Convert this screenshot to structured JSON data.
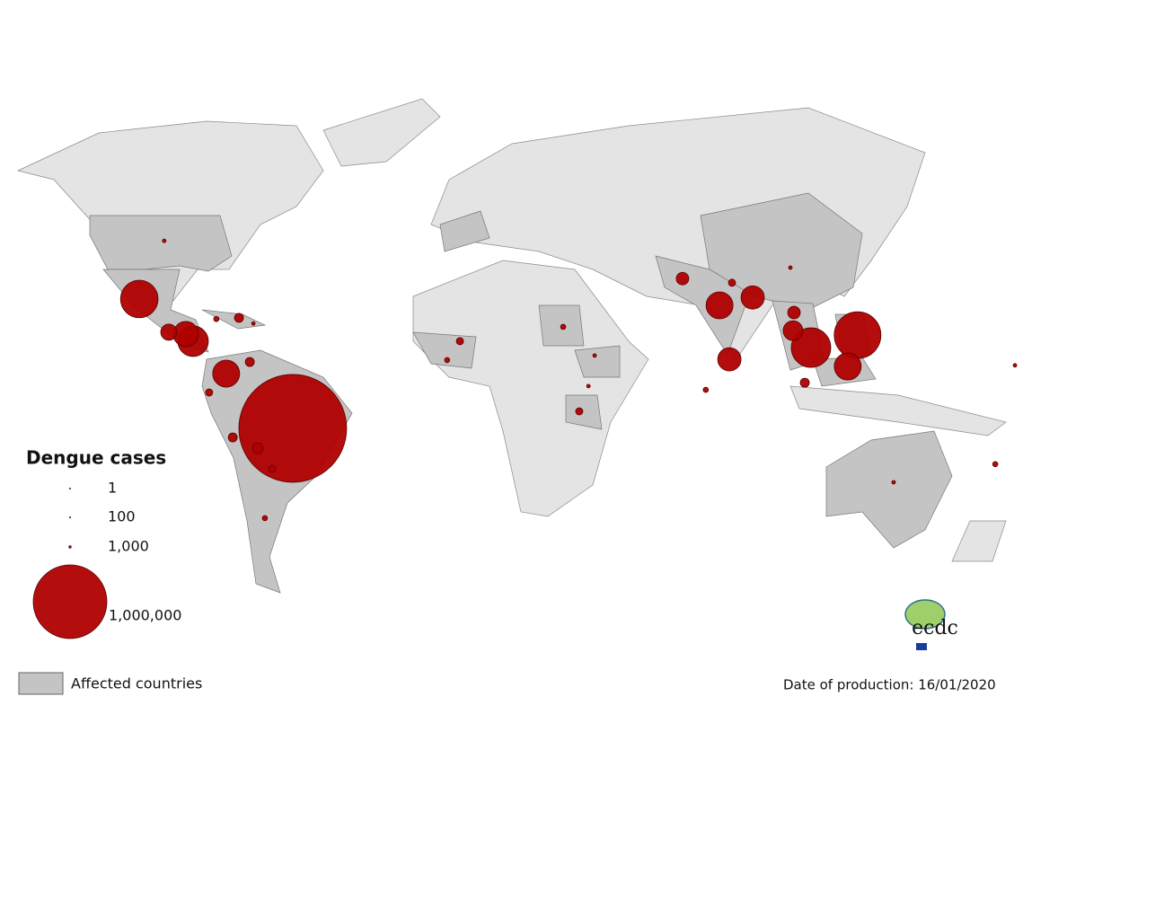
{
  "legend": {
    "title": "Dengue cases",
    "sizes": [
      {
        "value": 1,
        "label": "1"
      },
      {
        "value": 100,
        "label": "100"
      },
      {
        "value": 1000,
        "label": "1,000"
      },
      {
        "value": 1000000,
        "label": "1,000,000"
      }
    ],
    "affected_label": "Affected countries"
  },
  "date_text": "Date of production: 16/01/2020",
  "logo_text": "ecdc",
  "bubbles": [
    {
      "lon": -91.0,
      "lat": 39.0,
      "cases": 2400
    },
    {
      "lon": -98.6,
      "lat": 23.6,
      "cases": 260000
    },
    {
      "lon": -89.6,
      "lat": 14.8,
      "cases": 48000
    },
    {
      "lon": -84.4,
      "lat": 14.3,
      "cases": 117000
    },
    {
      "lon": -82.2,
      "lat": 12.4,
      "cases": 172000
    },
    {
      "lon": -75.1,
      "lat": 18.3,
      "cases": 5000
    },
    {
      "lon": -68.2,
      "lat": 18.6,
      "cases": 15000
    },
    {
      "lon": -63.8,
      "lat": 17.1,
      "cases": 2400
    },
    {
      "lon": -72.1,
      "lat": 3.8,
      "cases": 134000
    },
    {
      "lon": -64.9,
      "lat": 6.9,
      "cases": 15000
    },
    {
      "lon": -77.3,
      "lat": -1.2,
      "cases": 9500
    },
    {
      "lon": -70.1,
      "lat": -13.1,
      "cases": 15000
    },
    {
      "lon": -51.8,
      "lat": -10.7,
      "cases": 2140000
    },
    {
      "lon": -62.5,
      "lat": -16.0,
      "cases": 21000
    },
    {
      "lon": -58.1,
      "lat": -21.4,
      "cases": 9500
    },
    {
      "lon": -60.3,
      "lat": -34.5,
      "cases": 5000
    },
    {
      "lon": -0.8,
      "lat": 12.4,
      "cases": 9500
    },
    {
      "lon": -4.7,
      "lat": 7.4,
      "cases": 5000
    },
    {
      "lon": 30.7,
      "lat": 16.2,
      "cases": 5000
    },
    {
      "lon": 40.3,
      "lat": 8.6,
      "cases": 2400
    },
    {
      "lon": 38.4,
      "lat": 0.5,
      "cases": 2400
    },
    {
      "lon": 35.6,
      "lat": -6.2,
      "cases": 9500
    },
    {
      "lon": 67.1,
      "lat": 29.0,
      "cases": 29000
    },
    {
      "lon": 82.2,
      "lat": 27.9,
      "cases": 9500
    },
    {
      "lon": 78.4,
      "lat": 21.9,
      "cases": 134000
    },
    {
      "lon": 88.5,
      "lat": 24.0,
      "cases": 100000
    },
    {
      "lon": 81.4,
      "lat": 7.6,
      "cases": 100000
    },
    {
      "lon": 74.2,
      "lat": -0.5,
      "cases": 5000
    },
    {
      "lon": 101.1,
      "lat": 20.0,
      "cases": 29000
    },
    {
      "lon": 100.8,
      "lat": 15.2,
      "cases": 72000
    },
    {
      "lon": 106.3,
      "lat": 10.7,
      "cases": 288000
    },
    {
      "lon": 117.5,
      "lat": 5.7,
      "cases": 134000
    },
    {
      "lon": 120.5,
      "lat": 14.0,
      "cases": 402000
    },
    {
      "lon": 104.4,
      "lat": 1.4,
      "cases": 15000
    },
    {
      "lon": 100.0,
      "lat": 31.9,
      "cases": 2400
    },
    {
      "lon": 131.5,
      "lat": -25.0,
      "cases": 2400
    },
    {
      "lon": 168.5,
      "lat": 6.0,
      "cases": 2400
    },
    {
      "lon": 162.5,
      "lat": -20.2,
      "cases": 5000
    }
  ]
}
